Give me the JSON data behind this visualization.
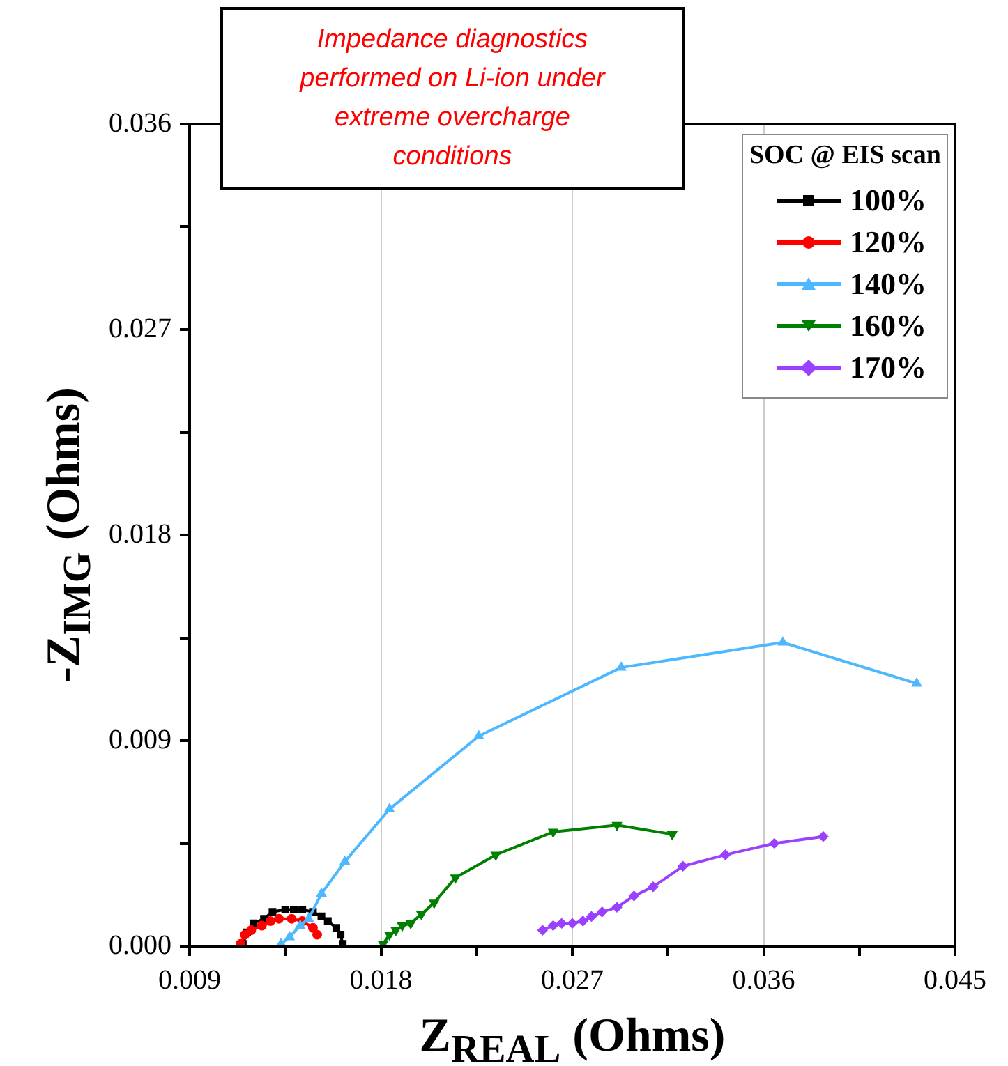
{
  "chart_data": {
    "type": "line",
    "xlabel": "Z$_{REAL}$ (Ohms)",
    "ylabel": "-Z$_{IMG}$ (Ohms)",
    "legend_title": "SOC @ EIS scan",
    "legend": "top right",
    "grid": "x",
    "line_style": "solid",
    "annotations": [
      "Impedance diagnostics performed on Li-ion under extreme overcharge conditions"
    ],
    "xlim": [
      0.009,
      0.045
    ],
    "xticks": [
      0.009,
      {
        "value": 0.0135,
        "label": null
      },
      0.018,
      {
        "value": 0.0225,
        "label": null
      },
      0.027,
      {
        "value": 0.0315,
        "label": null
      },
      0.036,
      {
        "value": 0.0405,
        "label": null
      },
      0.045
    ],
    "ylim": [
      0,
      0.036
    ],
    "yticks": [
      {
        "value": 0,
        "label": "0.000"
      },
      {
        "value": 0.0045,
        "label": null
      },
      0.009,
      {
        "value": 0.0135,
        "label": null
      },
      0.018,
      {
        "value": 0.0225,
        "label": null
      },
      0.027,
      {
        "value": 0.0315,
        "label": null
      },
      0.036
    ],
    "series": [
      {
        "name": "100%",
        "color": "#000000",
        "marker": "square",
        "x": [
          0.0115,
          0.0117,
          0.012,
          0.0125,
          0.0129,
          0.0135,
          0.0139,
          0.0143,
          0.0148,
          0.0152,
          0.0155,
          0.0159,
          0.0161,
          0.0162
        ],
        "values": [
          0.0001,
          0.0006,
          0.001,
          0.0012,
          0.0015,
          0.0016,
          0.0016,
          0.0016,
          0.0015,
          0.0013,
          0.0011,
          0.0008,
          0.0005,
          0.0001
        ]
      },
      {
        "name": "120%",
        "color": "#ff0000",
        "marker": "circle",
        "x": [
          0.0114,
          0.0116,
          0.0119,
          0.0124,
          0.0128,
          0.0132,
          0.0138,
          0.0143,
          0.0148,
          0.015
        ],
        "values": [
          0.0001,
          0.0005,
          0.0007,
          0.0009,
          0.0011,
          0.0012,
          0.0012,
          0.0011,
          0.0008,
          0.0005
        ]
      },
      {
        "name": "140%",
        "color": "#4db8ff",
        "marker": "triangle",
        "x": [
          0.0133,
          0.0137,
          0.0142,
          0.0146,
          0.0152,
          0.0163,
          0.0184,
          0.0226,
          0.0293,
          0.0369,
          0.0432
        ],
        "values": [
          0.0001,
          0.0004,
          0.0009,
          0.0012,
          0.0023,
          0.0037,
          0.006,
          0.0092,
          0.0122,
          0.0133,
          0.0115
        ]
      },
      {
        "name": "160%",
        "color": "#008000",
        "marker": "triangle_down",
        "x": [
          0.0181,
          0.0184,
          0.0187,
          0.019,
          0.0194,
          0.0199,
          0.0205,
          0.0215,
          0.0234,
          0.0261,
          0.0291,
          0.0317
        ],
        "values": [
          0.0001,
          0.0005,
          0.0007,
          0.0009,
          0.001,
          0.0014,
          0.0019,
          0.003,
          0.004,
          0.005,
          0.0053,
          0.0049
        ]
      },
      {
        "name": "170%",
        "color": "#9b40ff",
        "marker": "diamond",
        "x": [
          0.0256,
          0.0261,
          0.0265,
          0.027,
          0.0275,
          0.0279,
          0.0284,
          0.0291,
          0.0299,
          0.0308,
          0.0322,
          0.0342,
          0.0365,
          0.0388
        ],
        "values": [
          0.0007,
          0.0009,
          0.001,
          0.001,
          0.0011,
          0.0013,
          0.0015,
          0.0017,
          0.0022,
          0.0026,
          0.0035,
          0.004,
          0.0045,
          0.0048
        ]
      }
    ]
  }
}
